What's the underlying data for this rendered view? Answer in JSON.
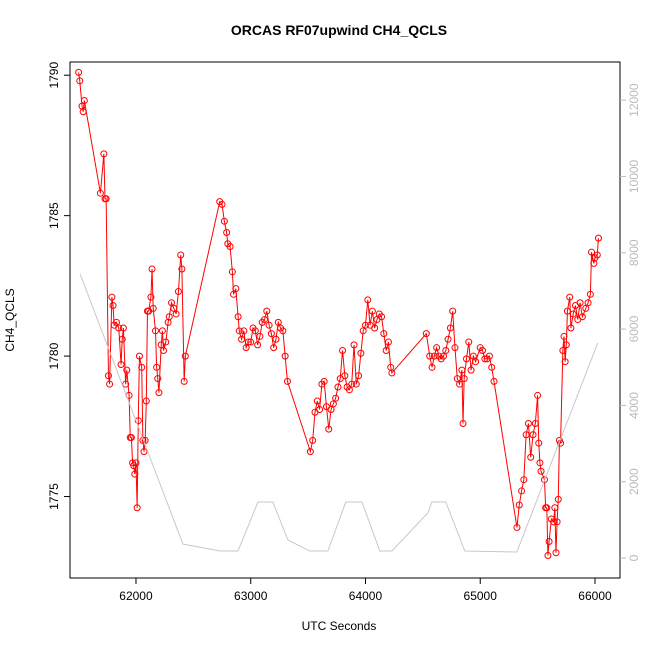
{
  "chart_data": {
    "type": "line",
    "title": "ORCAS RF07upwind CH4_QCLS",
    "x_label": "UTC Seconds",
    "y_label": "CH4_QCLS",
    "xlim": [
      61425,
      66218
    ],
    "ylim": [
      1772.1,
      1790.47
    ],
    "y2lim": [
      -524,
      13000
    ],
    "xticks": [
      62000,
      63000,
      64000,
      65000,
      66000
    ],
    "yticks": [
      1775,
      1780,
      1785,
      1790
    ],
    "y2ticks": [
      0,
      2000,
      4000,
      6000,
      8000,
      10000,
      12000
    ],
    "series": [
      {
        "color": "#ff0000",
        "x": [
          61500,
          61510,
          61530,
          61540,
          61550,
          61690,
          61720,
          61730,
          61740,
          61760,
          61770,
          61790,
          61800,
          61810,
          61830,
          61850,
          61870,
          61880,
          61890,
          61910,
          61920,
          61940,
          61950,
          61960,
          61970,
          61980,
          61990,
          62000,
          62010,
          62020,
          62030,
          62050,
          62060,
          62070,
          62080,
          62090,
          62100,
          62110,
          62130,
          62140,
          62150,
          62170,
          62180,
          62190,
          62200,
          62220,
          62230,
          62240,
          62260,
          62280,
          62290,
          62310,
          62330,
          62350,
          62370,
          62390,
          62400,
          62420,
          62430,
          62730,
          62750,
          62770,
          62790,
          62800,
          62820,
          62840,
          62850,
          62870,
          62890,
          62900,
          62920,
          62940,
          62960,
          62980,
          63000,
          63020,
          63040,
          63060,
          63080,
          63100,
          63120,
          63140,
          63160,
          63180,
          63200,
          63220,
          63240,
          63260,
          63280,
          63300,
          63320,
          63520,
          63540,
          63560,
          63580,
          63600,
          63620,
          63640,
          63660,
          63680,
          63700,
          63720,
          63740,
          63760,
          63780,
          63800,
          63820,
          63840,
          63860,
          63880,
          63900,
          63920,
          63940,
          63960,
          63980,
          64000,
          64020,
          64040,
          64060,
          64080,
          64100,
          64120,
          64140,
          64160,
          64180,
          64200,
          64220,
          64230,
          64530,
          64560,
          64580,
          64600,
          64620,
          64640,
          64660,
          64680,
          64700,
          64720,
          64740,
          64760,
          64780,
          64800,
          64820,
          64840,
          64850,
          64860,
          64880,
          64900,
          64920,
          64940,
          64960,
          65000,
          65020,
          65040,
          65060,
          65080,
          65100,
          65120,
          65320,
          65340,
          65360,
          65380,
          65400,
          65420,
          65440,
          65460,
          65480,
          65500,
          65510,
          65520,
          65530,
          65560,
          65570,
          65580,
          65590,
          65600,
          65620,
          65640,
          65650,
          65660,
          65670,
          65680,
          65690,
          65700,
          65720,
          65730,
          65740,
          65750,
          65760,
          65780,
          65790,
          65810,
          65830,
          65850,
          65870,
          65890,
          65920,
          65940,
          65960,
          65970,
          65990,
          66000,
          66020,
          66030
        ],
        "values": [
          1790.1,
          1789.8,
          1788.9,
          1788.7,
          1789.1,
          1785.8,
          1787.2,
          1785.6,
          1785.6,
          1779.3,
          1779.0,
          1782.1,
          1781.8,
          1781.1,
          1781.2,
          1781.0,
          1779.7,
          1780.6,
          1781.0,
          1779.0,
          1779.5,
          1778.6,
          1777.1,
          1777.1,
          1776.2,
          1776.1,
          1775.8,
          1776.2,
          1774.6,
          1777.7,
          1780.0,
          1779.6,
          1777.0,
          1776.6,
          1777.0,
          1778.4,
          1781.6,
          1781.6,
          1782.1,
          1783.1,
          1781.7,
          1780.9,
          1779.6,
          1779.2,
          1778.7,
          1780.4,
          1780.9,
          1780.2,
          1780.5,
          1781.2,
          1781.4,
          1781.9,
          1781.7,
          1781.5,
          1782.3,
          1783.6,
          1783.1,
          1779.1,
          1780.0,
          1785.5,
          1785.4,
          1784.8,
          1784.4,
          1784.0,
          1783.9,
          1783.0,
          1782.2,
          1782.4,
          1781.4,
          1780.9,
          1780.6,
          1780.9,
          1780.3,
          1780.5,
          1780.5,
          1781.0,
          1780.9,
          1780.4,
          1780.7,
          1781.2,
          1781.3,
          1781.6,
          1781.1,
          1780.8,
          1780.3,
          1780.6,
          1781.2,
          1781.0,
          1780.9,
          1780.0,
          1779.1,
          1776.6,
          1777.0,
          1778.0,
          1778.4,
          1778.1,
          1779.0,
          1779.1,
          1778.2,
          1777.4,
          1778.1,
          1778.3,
          1778.5,
          1778.9,
          1779.2,
          1780.2,
          1779.3,
          1778.9,
          1778.8,
          1779.0,
          1780.4,
          1779.0,
          1779.3,
          1780.1,
          1780.9,
          1781.1,
          1782.0,
          1781.1,
          1781.6,
          1781.0,
          1781.3,
          1781.5,
          1781.4,
          1780.8,
          1780.2,
          1780.5,
          1779.6,
          1779.4,
          1780.8,
          1780.0,
          1779.6,
          1780.0,
          1780.3,
          1780.0,
          1779.9,
          1780.0,
          1780.2,
          1780.6,
          1781.0,
          1781.6,
          1780.3,
          1779.2,
          1779.0,
          1779.5,
          1777.6,
          1779.2,
          1779.9,
          1780.5,
          1779.5,
          1780.0,
          1779.8,
          1780.3,
          1780.2,
          1779.9,
          1779.9,
          1780.0,
          1779.6,
          1779.1,
          1773.9,
          1774.7,
          1775.2,
          1775.6,
          1777.2,
          1777.6,
          1776.4,
          1777.2,
          1777.6,
          1778.6,
          1776.9,
          1776.2,
          1775.9,
          1775.6,
          1774.6,
          1774.6,
          1772.9,
          1773.4,
          1774.2,
          1774.1,
          1774.6,
          1773.0,
          1774.1,
          1774.9,
          1777.0,
          1776.9,
          1780.2,
          1780.7,
          1779.8,
          1780.4,
          1781.6,
          1782.1,
          1781.0,
          1781.5,
          1781.8,
          1781.3,
          1781.9,
          1781.4,
          1781.7,
          1781.9,
          1782.2,
          1783.7,
          1783.3,
          1783.5,
          1783.6,
          1784.2
        ]
      },
      {
        "color": "#c8c8c8",
        "axis": "y2",
        "x": [
          61513,
          62409,
          62732,
          62889,
          63063,
          63193,
          63324,
          63516,
          63672,
          63829,
          63969,
          64125,
          64230,
          64544,
          64578,
          64700,
          64866,
          65319,
          66024
        ],
        "values": [
          7444,
          367,
          183,
          183,
          1468,
          1468,
          472,
          183,
          183,
          1468,
          1468,
          183,
          183,
          1180,
          1468,
          1468,
          183,
          157,
          5636
        ]
      }
    ]
  }
}
